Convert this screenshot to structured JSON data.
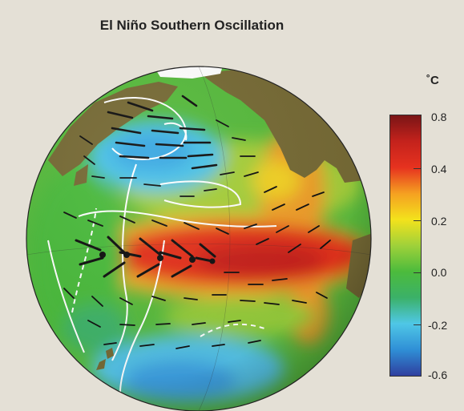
{
  "title": "El Niño Southern Oscillation",
  "colorbar": {
    "unit": "˚C",
    "ticks": [
      "0.8",
      "0.4",
      "0.2",
      "0.0",
      "-0.2",
      "-0.6"
    ],
    "colors": [
      "#7a1516",
      "#c4221c",
      "#e6321f",
      "#f5a021",
      "#f3e21c",
      "#9fd13a",
      "#4cbb3c",
      "#3bb168",
      "#4fc7e6",
      "#2f8fd6",
      "#2f3f9f"
    ]
  },
  "map": {
    "land_color": "#776b36",
    "ice_color": "#ffffff",
    "contour_color": "#ffffff",
    "vector_color": "#111111"
  }
}
